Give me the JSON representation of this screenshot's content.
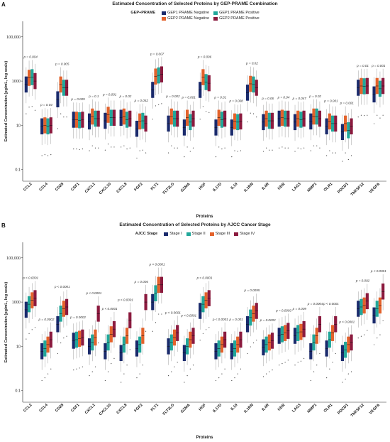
{
  "chart_data": [
    {
      "panel_letter": "A",
      "type": "box",
      "title": "Estimated Concentration of Selected Proteins by GEP-PRAME Combination",
      "xlabel": "Proteins",
      "ylabel": "Estimated Concentration (pg/mL, log scale)",
      "y_scale": "log",
      "ylim": [
        0.03,
        500000
      ],
      "yticks": [
        0.1,
        10,
        1000,
        100000
      ],
      "ytick_labels": [
        "0.1",
        "10",
        "1000",
        "100,000"
      ],
      "legend_title": "GEP+PRAME",
      "legend_rows": [
        [
          0,
          2
        ],
        [
          1,
          3
        ]
      ],
      "categories": [
        "CCL2",
        "CCL4",
        "CD28",
        "CSF1",
        "CXCL1",
        "CXCL10",
        "CXCL8",
        "FGF2",
        "FLT1",
        "FLT3LG",
        "GZMA",
        "HGF",
        "IL17D",
        "IL19",
        "IL1RN",
        "IL4R",
        "KDR",
        "LAG3",
        "MMP1",
        "OLR1",
        "PDCD1",
        "TNFSF12",
        "VEGFA"
      ],
      "p_values": [
        "p = 0.004",
        "p = 0.04",
        "p = 0.005",
        "p = 0.009",
        "p = 0.1",
        "p = 0.001",
        "p = 0.02",
        "p = 0.052",
        "p = 0.007",
        "p = 0.002",
        "p = 0.001",
        "p = 0.006",
        "p = 0.01",
        "p = 0.008",
        "p = 0.02",
        "p = 0.06",
        "p = 0.04",
        "p = 0.047",
        "p = 0.02",
        "p = 0.001",
        "p = 0.001",
        "p = 0.01",
        "p = 0.001"
      ],
      "series": [
        {
          "name": "GEP1 PRAME Negative",
          "color": "#1a2a6c",
          "median": [
            700,
            9,
            150,
            18,
            15,
            16,
            22,
            7,
            400,
            12,
            8,
            400,
            8,
            8,
            300,
            14,
            20,
            14,
            15,
            9,
            5,
            500,
            250
          ]
        },
        {
          "name": "GEP2 PRAME Negative",
          "color": "#e3622b",
          "median": [
            1400,
            10,
            700,
            18,
            25,
            30,
            25,
            15,
            1600,
            25,
            22,
            1500,
            22,
            15,
            750,
            20,
            22,
            20,
            25,
            15,
            12,
            600,
            600
          ]
        },
        {
          "name": "GEP1 PRAME Positive",
          "color": "#21a79a",
          "median": [
            1500,
            9,
            500,
            17,
            20,
            22,
            18,
            16,
            1800,
            20,
            14,
            900,
            18,
            14,
            700,
            16,
            20,
            18,
            25,
            12,
            6,
            580,
            450
          ]
        },
        {
          "name": "GEP2 PRAME Positive",
          "color": "#8b1a3e",
          "median": [
            1000,
            10,
            500,
            18,
            20,
            22,
            20,
            12,
            2000,
            20,
            20,
            800,
            20,
            15,
            500,
            16,
            20,
            20,
            20,
            12,
            9,
            600,
            600
          ]
        }
      ]
    },
    {
      "panel_letter": "B",
      "type": "box",
      "title": "Estimated Concentration of Selected Proteins by AJCC Cancer Stage",
      "xlabel": "Proteins",
      "ylabel": "Estimated Concentration (pg/mL, log scale)",
      "y_scale": "log",
      "ylim": [
        0.03,
        500000
      ],
      "yticks": [
        0.1,
        10,
        1000,
        100000
      ],
      "ytick_labels": [
        "0.1",
        "10",
        "1000",
        "100,000"
      ],
      "legend_title": "AJCC Stage",
      "legend_rows": [
        [
          0,
          1,
          2,
          3
        ]
      ],
      "categories": [
        "CCL2",
        "CCL4",
        "CD28",
        "CSF1",
        "CXCL1",
        "CXCL10",
        "CXCL8",
        "FGF2",
        "FLT1",
        "FLT3LG",
        "GZMA",
        "HGF",
        "IL17D",
        "IL19",
        "IL1RN",
        "IL4R",
        "KDR",
        "LAG3",
        "MMP1",
        "OLR1",
        "PDCD1",
        "TNFSF12",
        "VEGFA"
      ],
      "p_values": [
        "p < 0.0001",
        "p = 0.0002",
        "p < 0.0001",
        "p = 0.0002",
        "p < 0.0001",
        "p < 0.0001",
        "p < 0.0001",
        "p = 0.006",
        "p < 0.0001",
        "p < 0.0001",
        "p < 0.0001",
        "p < 0.0001",
        "p < 0.0001",
        "p = 0.001",
        "p = 0.0095",
        "p = 0.0002",
        "p = 0.0003",
        "p = 0.009",
        "p = 0.0004",
        "p < 0.0001",
        "p < 0.0001",
        "p = 0.002",
        "p < 0.0001"
      ],
      "series": [
        {
          "name": "Stage I",
          "color": "#1a2a6c",
          "median": [
            450,
            6,
            100,
            18,
            10,
            6,
            5,
            8,
            1000,
            10,
            5,
            400,
            6,
            6,
            100,
            9,
            30,
            30,
            6,
            8,
            5,
            500,
            250
          ]
        },
        {
          "name": "Stage II",
          "color": "#21a79a",
          "median": [
            800,
            8,
            300,
            20,
            15,
            15,
            12,
            12,
            2500,
            15,
            10,
            800,
            8,
            8,
            200,
            12,
            35,
            40,
            15,
            20,
            7,
            600,
            500
          ]
        },
        {
          "name": "Stage III",
          "color": "#e3622b",
          "median": [
            1200,
            12,
            500,
            22,
            25,
            35,
            30,
            30,
            6000,
            25,
            20,
            1200,
            12,
            12,
            300,
            15,
            40,
            45,
            30,
            40,
            12,
            700,
            700
          ]
        },
        {
          "name": "Stage IV",
          "color": "#8b1a3e",
          "median": [
            1500,
            20,
            600,
            25,
            300,
            60,
            150,
            1000,
            6000,
            40,
            30,
            1500,
            20,
            20,
            400,
            18,
            50,
            60,
            100,
            100,
            15,
            1100,
            3000
          ]
        }
      ]
    }
  ]
}
